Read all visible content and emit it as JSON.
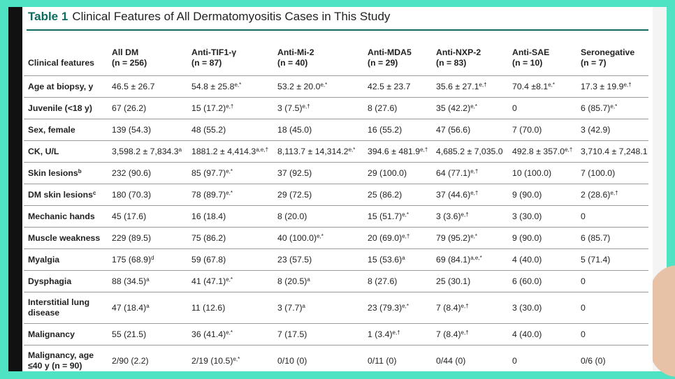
{
  "title": {
    "number": "Table 1",
    "text": "Clinical Features of All Dermatomyositis Cases in This Study"
  },
  "table": {
    "columns": [
      {
        "name": "Clinical features",
        "n": ""
      },
      {
        "name": "All DM",
        "n": "(n = 256)"
      },
      {
        "name": "Anti-TIF1-γ",
        "n": "(n = 87)"
      },
      {
        "name": "Anti-Mi-2",
        "n": "(n = 40)"
      },
      {
        "name": "Anti-MDA5",
        "n": "(n = 29)"
      },
      {
        "name": "Anti-NXP-2",
        "n": "(n = 83)"
      },
      {
        "name": "Anti-SAE",
        "n": "(n = 10)"
      },
      {
        "name": "Seronegative",
        "n": "(n = 7)"
      }
    ],
    "rows": [
      {
        "label": "Age at biopsy, y",
        "label_sup": "",
        "cells": [
          {
            "v": "46.5 ± 26.7",
            "s": ""
          },
          {
            "v": "54.8 ± 25.8",
            "s": "e,*"
          },
          {
            "v": "53.2 ± 20.0",
            "s": "e,*"
          },
          {
            "v": "42.5 ± 23.7",
            "s": ""
          },
          {
            "v": "35.6 ± 27.1",
            "s": "e,†"
          },
          {
            "v": "70.4 ±8.1",
            "s": "e,*"
          },
          {
            "v": "17.3 ± 19.9",
            "s": "e,†"
          }
        ]
      },
      {
        "label": "Juvenile (<18 y)",
        "label_sup": "",
        "cells": [
          {
            "v": "67 (26.2)",
            "s": ""
          },
          {
            "v": "15 (17.2)",
            "s": "e,†"
          },
          {
            "v": "3 (7.5)",
            "s": "e,†"
          },
          {
            "v": "8 (27.6)",
            "s": ""
          },
          {
            "v": "35 (42.2)",
            "s": "e,*"
          },
          {
            "v": "0",
            "s": ""
          },
          {
            "v": "6 (85.7)",
            "s": "e,*"
          }
        ]
      },
      {
        "label": "Sex, female",
        "label_sup": "",
        "cells": [
          {
            "v": "139 (54.3)",
            "s": ""
          },
          {
            "v": "48 (55.2)",
            "s": ""
          },
          {
            "v": "18 (45.0)",
            "s": ""
          },
          {
            "v": "16 (55.2)",
            "s": ""
          },
          {
            "v": "47 (56.6)",
            "s": ""
          },
          {
            "v": "7 (70.0)",
            "s": ""
          },
          {
            "v": "3 (42.9)",
            "s": ""
          }
        ]
      },
      {
        "label": "CK, U/L",
        "label_sup": "",
        "cells": [
          {
            "v": "3,598.2 ± 7,834.3",
            "s": "a"
          },
          {
            "v": "1881.2 ± 4,414.3",
            "s": "a,e,†"
          },
          {
            "v": "8,113.7 ± 14,314.2",
            "s": "e,*"
          },
          {
            "v": "394.6 ± 481.9",
            "s": "e,†"
          },
          {
            "v": "4,685.2 ± 7,035.0",
            "s": ""
          },
          {
            "v": "492.8 ± 357.0",
            "s": "e,†"
          },
          {
            "v": "3,710.4 ± 7,248.1",
            "s": ""
          }
        ]
      },
      {
        "label": "Skin lesions",
        "label_sup": "b",
        "cells": [
          {
            "v": "232 (90.6)",
            "s": ""
          },
          {
            "v": "85 (97.7)",
            "s": "e,*"
          },
          {
            "v": "37 (92.5)",
            "s": ""
          },
          {
            "v": "29 (100.0)",
            "s": ""
          },
          {
            "v": "64 (77.1)",
            "s": "e,†"
          },
          {
            "v": "10 (100.0)",
            "s": ""
          },
          {
            "v": "7 (100.0)",
            "s": ""
          }
        ]
      },
      {
        "label": "DM skin lesions",
        "label_sup": "c",
        "cells": [
          {
            "v": "180 (70.3)",
            "s": ""
          },
          {
            "v": "78 (89.7)",
            "s": "e,*"
          },
          {
            "v": "29 (72.5)",
            "s": ""
          },
          {
            "v": "25 (86.2)",
            "s": ""
          },
          {
            "v": "37 (44.6)",
            "s": "e,†"
          },
          {
            "v": "9 (90.0)",
            "s": ""
          },
          {
            "v": "2 (28.6)",
            "s": "e,†"
          }
        ]
      },
      {
        "label": "Mechanic hands",
        "label_sup": "",
        "cells": [
          {
            "v": "45 (17.6)",
            "s": ""
          },
          {
            "v": "16 (18.4)",
            "s": ""
          },
          {
            "v": "8 (20.0)",
            "s": ""
          },
          {
            "v": "15 (51.7)",
            "s": "e,*"
          },
          {
            "v": "3 (3.6)",
            "s": "e,†"
          },
          {
            "v": "3 (30.0)",
            "s": ""
          },
          {
            "v": "0",
            "s": ""
          }
        ]
      },
      {
        "label": "Muscle weakness",
        "label_sup": "",
        "cells": [
          {
            "v": "229 (89.5)",
            "s": ""
          },
          {
            "v": "75 (86.2)",
            "s": ""
          },
          {
            "v": "40 (100.0)",
            "s": "e,*"
          },
          {
            "v": "20 (69.0)",
            "s": "e,†"
          },
          {
            "v": "79 (95.2)",
            "s": "e,*"
          },
          {
            "v": "9 (90.0)",
            "s": ""
          },
          {
            "v": "6 (85.7)",
            "s": ""
          }
        ]
      },
      {
        "label": "Myalgia",
        "label_sup": "",
        "cells": [
          {
            "v": "175 (68.9)",
            "s": "d"
          },
          {
            "v": "59 (67.8)",
            "s": ""
          },
          {
            "v": "23 (57.5)",
            "s": ""
          },
          {
            "v": "15 (53.6)",
            "s": "a"
          },
          {
            "v": "69 (84.1)",
            "s": "a,e,*"
          },
          {
            "v": "4 (40.0)",
            "s": ""
          },
          {
            "v": "5 (71.4)",
            "s": ""
          }
        ]
      },
      {
        "label": "Dysphagia",
        "label_sup": "",
        "cells": [
          {
            "v": "88 (34.5)",
            "s": "a"
          },
          {
            "v": "41 (47.1)",
            "s": "e,*"
          },
          {
            "v": "8 (20.5)",
            "s": "a"
          },
          {
            "v": "8 (27.6)",
            "s": ""
          },
          {
            "v": "25 (30.1)",
            "s": ""
          },
          {
            "v": "6 (60.0)",
            "s": ""
          },
          {
            "v": "0",
            "s": ""
          }
        ]
      },
      {
        "label": "Interstitial lung disease",
        "label_sup": "",
        "tall": true,
        "cells": [
          {
            "v": "47 (18.4)",
            "s": "a"
          },
          {
            "v": "11 (12.6)",
            "s": ""
          },
          {
            "v": "3 (7.7)",
            "s": "a"
          },
          {
            "v": "23 (79.3)",
            "s": "e,*"
          },
          {
            "v": "7 (8.4)",
            "s": "e,†"
          },
          {
            "v": "3 (30.0)",
            "s": ""
          },
          {
            "v": "0",
            "s": ""
          }
        ]
      },
      {
        "label": "Malignancy",
        "label_sup": "",
        "cells": [
          {
            "v": "55 (21.5)",
            "s": ""
          },
          {
            "v": "36 (41.4)",
            "s": "e,*"
          },
          {
            "v": "7 (17.5)",
            "s": ""
          },
          {
            "v": "1 (3.4)",
            "s": "e,†"
          },
          {
            "v": "7 (8.4)",
            "s": "e,†"
          },
          {
            "v": "4 (40.0)",
            "s": ""
          },
          {
            "v": "0",
            "s": ""
          }
        ]
      },
      {
        "label": "Malignancy, age ≤40 y (n = 90)",
        "label_sup": "",
        "tall": true,
        "cells": [
          {
            "v": "2/90 (2.2)",
            "s": ""
          },
          {
            "v": "2/19 (10.5)",
            "s": "e,*"
          },
          {
            "v": "0/10 (0)",
            "s": ""
          },
          {
            "v": "0/11 (0)",
            "s": ""
          },
          {
            "v": "0/44 (0)",
            "s": ""
          },
          {
            "v": "0",
            "s": ""
          },
          {
            "v": "0/6 (0)",
            "s": ""
          }
        ]
      }
    ]
  },
  "colors": {
    "accent": "#0e6b5e",
    "background": "#4fe3c3"
  }
}
